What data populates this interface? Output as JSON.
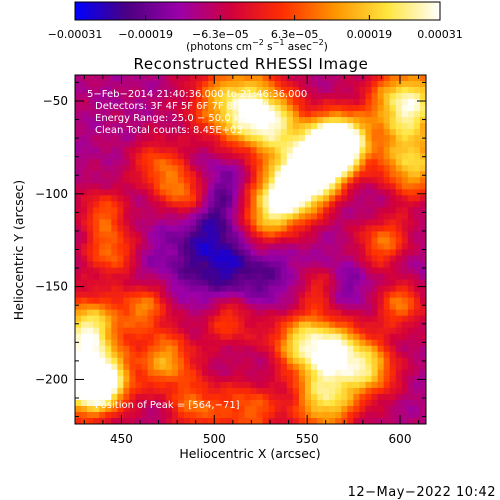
{
  "page": {
    "background": "#ffffff",
    "text_color": "#000000"
  },
  "chart_data": {
    "type": "heatmap",
    "title": "Reconstructed RHESSI Image",
    "xlabel": "Heliocentric X (arcsec)",
    "ylabel": "Heliocentric Y (arcsec)",
    "xlim": [
      425,
      614
    ],
    "ylim": [
      -224,
      -36
    ],
    "xticks": [
      450,
      500,
      550,
      600
    ],
    "xtick_labels": [
      "450",
      "500",
      "550",
      "600"
    ],
    "yticks": [
      -50,
      -100,
      -150,
      -200
    ],
    "ytick_labels": [
      "−50",
      "−100",
      "−150",
      "−200"
    ],
    "grid": false,
    "colorbar": {
      "range": [
        -0.00031,
        0.00031
      ],
      "tick_values": [
        -0.00031,
        -0.00019,
        -6.3e-05,
        6.3e-05,
        0.00019,
        0.00031
      ],
      "tick_labels": [
        "−0.00031",
        "−0.00019",
        "−6.3e−05",
        "6.3e−05",
        "0.00019",
        "0.00031"
      ],
      "units_prefix": "(photons cm",
      "units_sup1": "−2",
      "units_mid": " s",
      "units_sup2": "−1",
      "units_mid2": " asec",
      "units_sup3": "−2",
      "units_suffix": ")",
      "colors": [
        "#0000ff",
        "#4b0082",
        "#9b00a8",
        "#d2003c",
        "#ff3000",
        "#ff9600",
        "#ffe640",
        "#ffffff"
      ]
    },
    "annotations": [
      "5−Feb−2014 21:40:36.000 to 21:46:36.000",
      "Detectors: 3F 4F 5F 6F 7F 8F, Att 0",
      "Energy Range: 25.0 − 50.0 keV",
      "Clean     Total counts: 8.45E+03"
    ],
    "peak_label": "Position of Peak = [564,−71]",
    "peak_position": [
      564,
      -71
    ],
    "hotspots": [
      {
        "x": 568,
        "y": -72,
        "intensity": 1.0,
        "radius": 10
      },
      {
        "x": 560,
        "y": -80,
        "intensity": 0.9,
        "radius": 13
      },
      {
        "x": 548,
        "y": -92,
        "intensity": 0.85,
        "radius": 12
      },
      {
        "x": 534,
        "y": -104,
        "intensity": 0.8,
        "radius": 12
      },
      {
        "x": 522,
        "y": -118,
        "intensity": 0.55,
        "radius": 12
      },
      {
        "x": 604,
        "y": -52,
        "intensity": 0.95,
        "radius": 14
      },
      {
        "x": 606,
        "y": -85,
        "intensity": 0.7,
        "radius": 12
      },
      {
        "x": 512,
        "y": -52,
        "intensity": 0.8,
        "radius": 16
      },
      {
        "x": 530,
        "y": -62,
        "intensity": 0.65,
        "radius": 12
      },
      {
        "x": 485,
        "y": -100,
        "intensity": 0.7,
        "radius": 10
      },
      {
        "x": 470,
        "y": -85,
        "intensity": 0.45,
        "radius": 10
      },
      {
        "x": 432,
        "y": -172,
        "intensity": 0.8,
        "radius": 12
      },
      {
        "x": 428,
        "y": -200,
        "intensity": 0.95,
        "radius": 14
      },
      {
        "x": 440,
        "y": -202,
        "intensity": 0.75,
        "radius": 10
      },
      {
        "x": 474,
        "y": -190,
        "intensity": 0.6,
        "radius": 11
      },
      {
        "x": 462,
        "y": -160,
        "intensity": 0.55,
        "radius": 10
      },
      {
        "x": 548,
        "y": -180,
        "intensity": 0.8,
        "radius": 13
      },
      {
        "x": 568,
        "y": -186,
        "intensity": 0.7,
        "radius": 12
      },
      {
        "x": 560,
        "y": -212,
        "intensity": 0.75,
        "radius": 12
      },
      {
        "x": 585,
        "y": -195,
        "intensity": 0.55,
        "radius": 10
      },
      {
        "x": 592,
        "y": -128,
        "intensity": 0.6,
        "radius": 11
      },
      {
        "x": 600,
        "y": -158,
        "intensity": 0.55,
        "radius": 10
      },
      {
        "x": 445,
        "y": -132,
        "intensity": 0.5,
        "radius": 10
      },
      {
        "x": 440,
        "y": -110,
        "intensity": 0.4,
        "radius": 9
      },
      {
        "x": 520,
        "y": -215,
        "intensity": 0.5,
        "radius": 12
      },
      {
        "x": 490,
        "y": -215,
        "intensity": 0.45,
        "radius": 10
      },
      {
        "x": 555,
        "y": -150,
        "intensity": 0.45,
        "radius": 9
      },
      {
        "x": 508,
        "y": -168,
        "intensity": 0.4,
        "radius": 10
      }
    ],
    "coldspots": [
      {
        "x": 500,
        "y": -105,
        "intensity": 0.9,
        "radius": 18
      },
      {
        "x": 520,
        "y": -130,
        "intensity": 0.6,
        "radius": 16
      },
      {
        "x": 500,
        "y": -140,
        "intensity": 0.55,
        "radius": 16
      },
      {
        "x": 545,
        "y": -155,
        "intensity": 0.4,
        "radius": 14
      },
      {
        "x": 600,
        "y": -140,
        "intensity": 0.6,
        "radius": 12
      },
      {
        "x": 570,
        "y": -150,
        "intensity": 0.45,
        "radius": 12
      },
      {
        "x": 460,
        "y": -145,
        "intensity": 0.35,
        "radius": 12
      },
      {
        "x": 530,
        "y": -200,
        "intensity": 0.35,
        "radius": 12
      },
      {
        "x": 580,
        "y": -100,
        "intensity": 0.3,
        "radius": 12
      }
    ]
  },
  "footer": {
    "timestamp": "12−May−2022 10:42"
  }
}
